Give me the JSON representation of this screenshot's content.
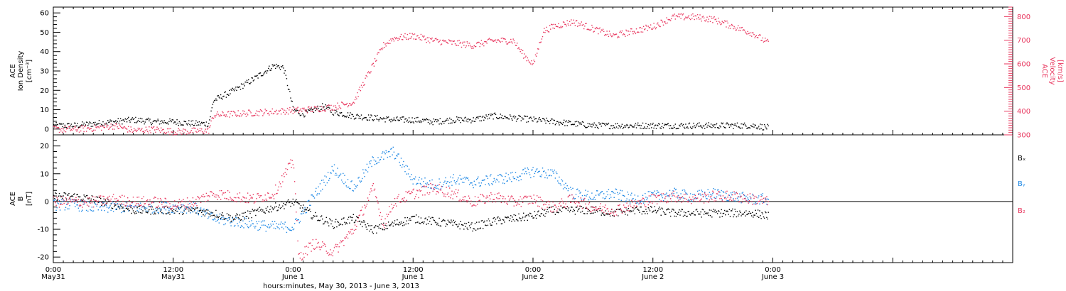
{
  "colors": {
    "black": "#000000",
    "pink": "#e8365e",
    "blue": "#1e88e5"
  },
  "xaxis": {
    "title": "hours:minutes, May 30, 2013 - June  3, 2013",
    "range_hours": [
      0,
      96
    ],
    "ticks": [
      {
        "hour": 0,
        "time": "0:00",
        "date": "May31"
      },
      {
        "hour": 12,
        "time": "12:00",
        "date": "May31"
      },
      {
        "hour": 24,
        "time": "0:00",
        "date": "June 1"
      },
      {
        "hour": 36,
        "time": "12:00",
        "date": "June 1"
      },
      {
        "hour": 48,
        "time": "0:00",
        "date": "June 2"
      },
      {
        "hour": 60,
        "time": "12:00",
        "date": "June 2"
      },
      {
        "hour": 72,
        "time": "0:00",
        "date": "June 3"
      }
    ]
  },
  "chart_data": [
    {
      "type": "scatter",
      "ylabel_left": [
        "ACE",
        "Ion Density",
        "[cm⁻³]"
      ],
      "ylabel_right": [
        "ACE",
        "Velocity",
        "[km/s]"
      ],
      "ylim_left": [
        -3,
        63
      ],
      "ylim_right": [
        300,
        840
      ],
      "yticks_left": [
        0,
        10,
        20,
        30,
        40,
        50,
        60
      ],
      "yticks_right": [
        300,
        400,
        500,
        600,
        700,
        800
      ],
      "series": [
        {
          "color": "black",
          "axis": "left",
          "x": [
            0,
            2,
            4,
            6,
            8,
            10,
            12,
            14,
            15.5,
            16,
            18,
            20,
            22,
            23,
            24,
            25,
            26,
            27,
            28,
            29,
            30,
            32,
            34,
            36,
            38,
            40,
            42,
            44,
            46,
            48,
            50,
            52,
            54,
            56,
            58,
            60,
            62,
            64,
            66,
            68,
            70,
            71.5
          ],
          "y": [
            2,
            2,
            3,
            4,
            5,
            4,
            4,
            3,
            3,
            15,
            20,
            26,
            33,
            32,
            10,
            8,
            10,
            12,
            9,
            8,
            7,
            6,
            5,
            5,
            4,
            5,
            5,
            7,
            6,
            5,
            4,
            3,
            2,
            2,
            2,
            2,
            2,
            2,
            2,
            2,
            2,
            1
          ]
        },
        {
          "color": "pink",
          "axis": "right",
          "x": [
            0,
            2,
            4,
            6,
            8,
            10,
            12,
            14,
            15.5,
            16,
            18,
            20,
            22,
            24,
            26,
            28,
            30,
            31,
            32,
            33,
            34,
            36,
            38,
            40,
            42,
            44,
            46,
            47,
            48,
            49,
            50,
            52,
            54,
            56,
            58,
            60,
            62,
            64,
            66,
            68,
            70,
            71.5
          ],
          "y": [
            325,
            325,
            330,
            340,
            320,
            325,
            315,
            318,
            320,
            385,
            390,
            395,
            400,
            405,
            410,
            420,
            440,
            520,
            600,
            680,
            710,
            720,
            700,
            690,
            680,
            700,
            700,
            640,
            600,
            740,
            760,
            780,
            750,
            720,
            740,
            760,
            800,
            800,
            790,
            760,
            730,
            690
          ]
        }
      ]
    },
    {
      "type": "scatter",
      "ylabel_left": [
        "ACE",
        "B",
        "[nT]"
      ],
      "ylim": [
        -22,
        24
      ],
      "yticks": [
        -20,
        -10,
        0,
        10,
        20
      ],
      "legend": [
        "Bₓ",
        "Bᵧ",
        "B₂"
      ],
      "series": [
        {
          "color": "black",
          "x": [
            0,
            2,
            4,
            6,
            8,
            10,
            12,
            14,
            16,
            18,
            20,
            22,
            24,
            26,
            28,
            30,
            32,
            34,
            36,
            38,
            40,
            42,
            44,
            46,
            48,
            50,
            52,
            54,
            56,
            58,
            60,
            62,
            64,
            66,
            68,
            70,
            71.5
          ],
          "y": [
            2,
            2,
            1,
            -1,
            -3,
            -3,
            -3,
            -3,
            -4,
            -6,
            -4,
            -2,
            0,
            -5,
            -8,
            -6,
            -10,
            -8,
            -6,
            -7,
            -8,
            -9,
            -7,
            -6,
            -5,
            -3,
            -3,
            -3,
            -4,
            -3,
            -3,
            -4,
            -4,
            -4,
            -4,
            -4,
            -5
          ]
        },
        {
          "color": "blue",
          "x": [
            0,
            2,
            4,
            6,
            8,
            10,
            12,
            14,
            16,
            18,
            20,
            22,
            24,
            26,
            28,
            30,
            32,
            34,
            36,
            38,
            40,
            42,
            44,
            46,
            48,
            50,
            52,
            54,
            56,
            58,
            60,
            62,
            64,
            66,
            68,
            70,
            71.5
          ],
          "y": [
            -1,
            -1,
            -2,
            -2,
            -2,
            -2,
            -2,
            -2,
            -6,
            -7,
            -8,
            -9,
            -9,
            2,
            12,
            5,
            15,
            18,
            8,
            6,
            8,
            7,
            8,
            9,
            11,
            10,
            3,
            2,
            3,
            1,
            2,
            3,
            2,
            3,
            2,
            1,
            1
          ]
        },
        {
          "color": "pink",
          "x": [
            0,
            2,
            4,
            6,
            8,
            10,
            12,
            14,
            16,
            18,
            20,
            22,
            24,
            24.5,
            26,
            28,
            30,
            32,
            33,
            34,
            36,
            38,
            40,
            42,
            44,
            46,
            48,
            50,
            52,
            54,
            56,
            58,
            60,
            62,
            64,
            66,
            68,
            70,
            71.5
          ],
          "y": [
            0,
            0,
            0,
            1,
            0,
            0,
            -1,
            0,
            3,
            2,
            1,
            3,
            15,
            -20,
            -15,
            -18,
            -10,
            5,
            -8,
            0,
            3,
            5,
            3,
            0,
            2,
            0,
            1,
            -2,
            1,
            -2,
            -3,
            -1,
            1,
            2,
            1,
            2,
            2,
            1,
            0
          ]
        }
      ]
    }
  ]
}
